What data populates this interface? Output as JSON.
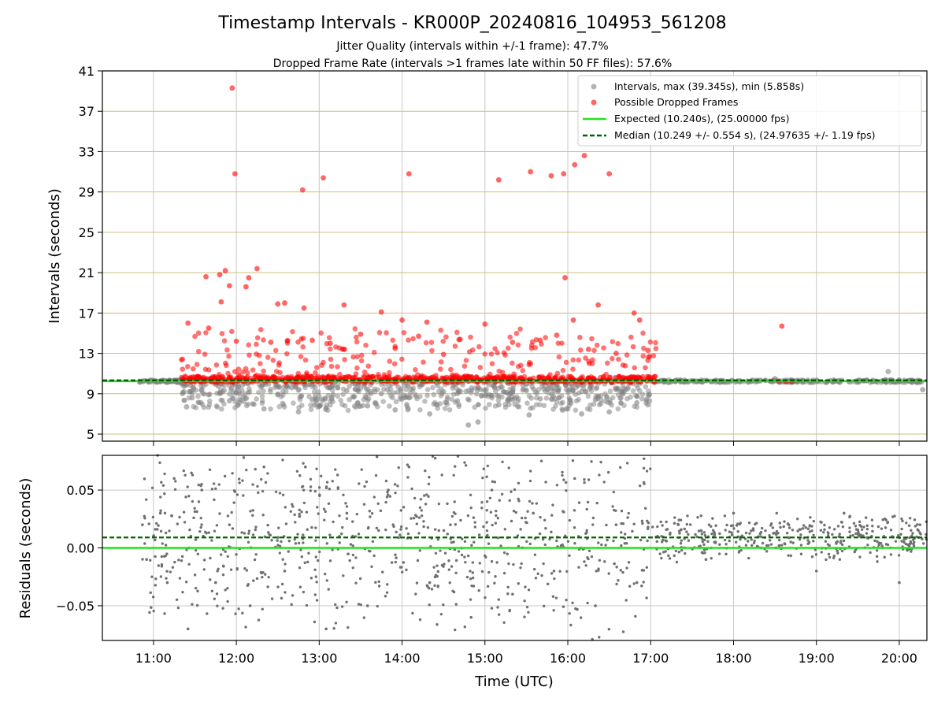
{
  "figure": {
    "title": "Timestamp Intervals - KR000P_20240816_104953_561208",
    "subtitle_1": "Jitter Quality (intervals within +/-1 frame): 47.7%",
    "subtitle_2": "Dropped Frame Rate (intervals >1 frames late within 50 FF files): 57.6%"
  },
  "chart_data": [
    {
      "type": "scatter",
      "panel": "intervals",
      "ylabel": "Intervals (seconds)",
      "xlabel": "",
      "ylim": [
        4.3,
        41
      ],
      "xlim": [
        "10:23",
        "20:20"
      ],
      "yticks": [
        5,
        9,
        13,
        17,
        21,
        25,
        29,
        33,
        37,
        41
      ],
      "grid": true,
      "legend_position": "top-right",
      "legend": [
        {
          "label": "Intervals, max (39.345s), min (5.858s)",
          "marker": "circle",
          "color": "#808080"
        },
        {
          "label": "Possible Dropped Frames",
          "marker": "circle",
          "color": "#ff0000"
        },
        {
          "label": "Expected (10.240s), (25.00000 fps)",
          "marker": "line",
          "color": "#22e022"
        },
        {
          "label": "Median (10.249 +/- 0.554 s), (24.97635 +/- 1.19 fps)",
          "marker": "dashed",
          "color": "#006400"
        }
      ],
      "reference_lines": {
        "expected": 10.24,
        "median": 10.249
      },
      "series": [
        {
          "name": "Intervals, max (39.345s), min (5.858s)",
          "color": "#808080",
          "points": [
            [
              "10:50",
              10.24
            ],
            [
              "11:02",
              10.25
            ],
            [
              "11:15",
              10.22
            ],
            [
              "11:22",
              9.2
            ],
            [
              "11:24",
              7.7
            ],
            [
              "11:28",
              8.6
            ],
            [
              "11:35",
              9.4
            ],
            [
              "11:40",
              8.9
            ],
            [
              "11:48",
              9.1
            ],
            [
              "11:55",
              8.3
            ],
            [
              "12:05",
              8.7
            ],
            [
              "12:12",
              8.0
            ],
            [
              "12:20",
              7.5
            ],
            [
              "12:30",
              8.9
            ],
            [
              "12:40",
              9.6
            ],
            [
              "12:45",
              7.2
            ],
            [
              "12:55",
              8.4
            ],
            [
              "13:05",
              7.6
            ],
            [
              "13:10",
              8.9
            ],
            [
              "13:20",
              9.3
            ],
            [
              "13:28",
              8.1
            ],
            [
              "13:35",
              7.8
            ],
            [
              "13:45",
              9.0
            ],
            [
              "13:55",
              7.4
            ],
            [
              "14:05",
              8.6
            ],
            [
              "14:20",
              7.0
            ],
            [
              "14:30",
              9.2
            ],
            [
              "14:40",
              8.3
            ],
            [
              "14:48",
              5.9
            ],
            [
              "14:55",
              6.2
            ],
            [
              "15:05",
              8.8
            ],
            [
              "15:10",
              7.9
            ],
            [
              "15:20",
              9.1
            ],
            [
              "15:32",
              6.9
            ],
            [
              "15:40",
              8.5
            ],
            [
              "15:50",
              9.3
            ],
            [
              "16:00",
              7.5
            ],
            [
              "16:10",
              7.0
            ],
            [
              "16:20",
              8.4
            ],
            [
              "16:30",
              7.2
            ],
            [
              "16:40",
              9.0
            ],
            [
              "16:50",
              8.1
            ],
            [
              "16:58",
              7.9
            ],
            [
              "17:10",
              10.24
            ],
            [
              "17:30",
              10.3
            ],
            [
              "17:50",
              10.2
            ],
            [
              "18:10",
              10.25
            ],
            [
              "18:30",
              10.5
            ],
            [
              "18:50",
              10.2
            ],
            [
              "19:10",
              10.3
            ],
            [
              "19:30",
              10.2
            ],
            [
              "19:50",
              10.4
            ],
            [
              "19:52",
              11.2
            ],
            [
              "20:15",
              10.24
            ],
            [
              "20:17",
              9.4
            ]
          ]
        },
        {
          "name": "Possible Dropped Frames",
          "color": "#ff0000",
          "points": [
            [
              "11:57",
              39.3
            ],
            [
              "11:59",
              30.8
            ],
            [
              "12:48",
              29.2
            ],
            [
              "13:03",
              30.4
            ],
            [
              "14:05",
              30.8
            ],
            [
              "15:10",
              30.2
            ],
            [
              "15:33",
              31.0
            ],
            [
              "15:48",
              30.6
            ],
            [
              "15:57",
              30.8
            ],
            [
              "16:05",
              31.7
            ],
            [
              "16:12",
              32.6
            ],
            [
              "16:30",
              30.8
            ],
            [
              "11:38",
              20.6
            ],
            [
              "11:48",
              20.8
            ],
            [
              "11:52",
              21.2
            ],
            [
              "12:09",
              20.5
            ],
            [
              "12:15",
              21.4
            ],
            [
              "11:49",
              18.1
            ],
            [
              "11:55",
              19.7
            ],
            [
              "12:07",
              19.6
            ],
            [
              "12:30",
              17.9
            ],
            [
              "12:35",
              18.0
            ],
            [
              "12:49",
              17.5
            ],
            [
              "13:18",
              17.8
            ],
            [
              "13:45",
              17.1
            ],
            [
              "14:00",
              16.3
            ],
            [
              "14:18",
              16.1
            ],
            [
              "15:00",
              15.9
            ],
            [
              "15:58",
              20.5
            ],
            [
              "16:04",
              16.3
            ],
            [
              "16:22",
              17.8
            ],
            [
              "16:48",
              17.0
            ],
            [
              "16:52",
              16.3
            ],
            [
              "11:25",
              16.0
            ],
            [
              "11:40",
              15.5
            ],
            [
              "12:00",
              14.2
            ],
            [
              "12:25",
              14.1
            ],
            [
              "12:55",
              14.3
            ],
            [
              "13:08",
              14.0
            ],
            [
              "13:30",
              14.9
            ],
            [
              "13:55",
              13.5
            ],
            [
              "14:12",
              14.7
            ],
            [
              "14:30",
              12.9
            ],
            [
              "14:42",
              14.4
            ],
            [
              "15:20",
              14.1
            ],
            [
              "15:40",
              14.3
            ],
            [
              "15:52",
              14.8
            ],
            [
              "16:15",
              13.4
            ],
            [
              "16:35",
              13.0
            ],
            [
              "16:58",
              13.3
            ],
            [
              "18:35",
              15.7
            ],
            [
              "18:33",
              10.2
            ],
            [
              "18:38",
              10.2
            ],
            [
              "18:42",
              10.2
            ]
          ]
        }
      ]
    },
    {
      "type": "scatter",
      "panel": "residuals",
      "ylabel": "Residuals (seconds)",
      "xlabel": "Time (UTC)",
      "ylim": [
        -0.08,
        0.08
      ],
      "xlim": [
        "10:23",
        "20:20"
      ],
      "yticks": [
        -0.05,
        0.0,
        0.05
      ],
      "ytick_labels": [
        "−0.05",
        "0.00",
        "0.05"
      ],
      "xticks": [
        "11:00",
        "12:00",
        "13:00",
        "14:00",
        "15:00",
        "16:00",
        "17:00",
        "18:00",
        "19:00",
        "20:00"
      ],
      "grid": true,
      "reference_lines": {
        "expected": 0.0,
        "median": 0.009
      },
      "series": [
        {
          "color": "#707070",
          "points": [
            [
              "10:52",
              0.02
            ],
            [
              "10:55",
              -0.01
            ],
            [
              "11:00",
              0.01
            ],
            [
              "11:05",
              0.03
            ],
            [
              "11:10",
              -0.03
            ],
            [
              "11:15",
              0.06
            ],
            [
              "11:25",
              -0.07
            ],
            [
              "11:35",
              0.05
            ],
            [
              "11:45",
              -0.03
            ],
            [
              "11:55",
              0.02
            ],
            [
              "12:10",
              -0.05
            ],
            [
              "12:20",
              0.07
            ],
            [
              "12:35",
              -0.02
            ],
            [
              "12:50",
              0.07
            ],
            [
              "13:05",
              -0.07
            ],
            [
              "13:20",
              0.03
            ],
            [
              "13:35",
              -0.05
            ],
            [
              "13:50",
              0.05
            ],
            [
              "14:05",
              0.07
            ],
            [
              "14:20",
              -0.03
            ],
            [
              "14:35",
              0.02
            ],
            [
              "14:50",
              -0.06
            ],
            [
              "15:05",
              0.05
            ],
            [
              "15:20",
              -0.04
            ],
            [
              "15:35",
              0.03
            ],
            [
              "15:50",
              -0.02
            ],
            [
              "16:05",
              0.06
            ],
            [
              "16:20",
              -0.05
            ],
            [
              "16:35",
              0.02
            ],
            [
              "16:50",
              -0.03
            ],
            [
              "17:05",
              0.01
            ],
            [
              "17:20",
              0.02
            ],
            [
              "17:40",
              -0.01
            ],
            [
              "18:00",
              0.03
            ],
            [
              "18:20",
              0.0
            ],
            [
              "18:40",
              0.02
            ],
            [
              "19:00",
              -0.02
            ],
            [
              "19:20",
              0.03
            ],
            [
              "19:40",
              0.01
            ],
            [
              "20:00",
              -0.03
            ],
            [
              "20:15",
              0.02
            ]
          ]
        }
      ]
    }
  ]
}
